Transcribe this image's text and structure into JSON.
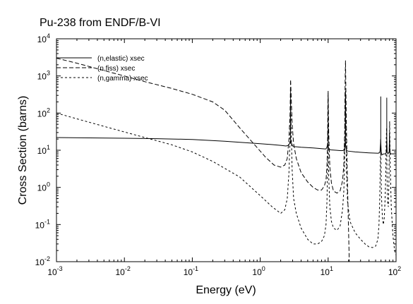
{
  "chart_data": {
    "type": "line",
    "title": "Pu-238 from ENDF/B-VI",
    "xlabel": "Energy (eV)",
    "ylabel": "Cross Section (barns)",
    "xscale": "log",
    "yscale": "log",
    "xlim": [
      0.001,
      100
    ],
    "ylim": [
      0.01,
      10000
    ],
    "x_ticks": [
      {
        "value": 0.001,
        "base": "10",
        "exp": "-3"
      },
      {
        "value": 0.01,
        "base": "10",
        "exp": "-2"
      },
      {
        "value": 0.1,
        "base": "10",
        "exp": "-1"
      },
      {
        "value": 1,
        "base": "10",
        "exp": "0"
      },
      {
        "value": 10,
        "base": "10",
        "exp": "1"
      },
      {
        "value": 100,
        "base": "10",
        "exp": "2"
      }
    ],
    "y_ticks": [
      {
        "value": 0.01,
        "base": "10",
        "exp": "-2"
      },
      {
        "value": 0.1,
        "base": "10",
        "exp": "-1"
      },
      {
        "value": 1,
        "base": "10",
        "exp": "0"
      },
      {
        "value": 10,
        "base": "10",
        "exp": "1"
      },
      {
        "value": 100,
        "base": "10",
        "exp": "2"
      },
      {
        "value": 1000,
        "base": "10",
        "exp": "3"
      },
      {
        "value": 10000,
        "base": "10",
        "exp": "4"
      }
    ],
    "legend_position": "top-left",
    "grid": false,
    "series": [
      {
        "name": "(n,elastic) xsec",
        "dash": "solid",
        "x": [
          0.001,
          0.003,
          0.01,
          0.03,
          0.1,
          0.3,
          1,
          1.5,
          2,
          2.4,
          2.6,
          2.7,
          2.8,
          2.9,
          3.0,
          3.2,
          4,
          6,
          8,
          9.2,
          9.5,
          9.7,
          9.9,
          10.1,
          10.4,
          11,
          13,
          15,
          16.5,
          17.2,
          17.6,
          17.9,
          18.2,
          18.6,
          19.5,
          25,
          40,
          55,
          58,
          59.5,
          60.5,
          62,
          66,
          70,
          72,
          73,
          74,
          76,
          79,
          80,
          81,
          83,
          88,
          95,
          100
        ],
        "y": [
          22,
          21.5,
          21,
          20.5,
          19.5,
          17.5,
          15,
          14.2,
          13.5,
          13,
          13.5,
          15,
          18,
          15,
          13,
          12.5,
          12,
          11.5,
          11,
          10.8,
          11.5,
          13,
          16,
          12,
          10.5,
          10.2,
          10,
          9.8,
          9.8,
          10.5,
          12,
          18,
          12,
          10,
          9.5,
          9,
          8.5,
          8.3,
          9,
          18,
          9,
          7.5,
          8,
          8,
          9,
          20,
          9,
          8,
          9,
          25,
          10,
          8,
          8,
          8,
          8
        ]
      },
      {
        "name": "(n,fiss) xsec",
        "dash": "long-dash",
        "x": [
          0.001,
          0.002,
          0.005,
          0.01,
          0.02,
          0.05,
          0.1,
          0.2,
          0.3,
          0.5,
          0.8,
          1.2,
          1.6,
          2.0,
          2.3,
          2.5,
          2.65,
          2.75,
          2.8,
          2.85,
          2.95,
          3.1,
          3.4,
          4,
          5,
          6,
          7,
          8,
          8.8,
          9.3,
          9.6,
          9.8,
          9.9,
          10.0,
          10.2,
          10.6,
          11.2,
          12,
          13.5,
          15,
          16.3,
          17.0,
          17.5,
          17.8,
          18.0,
          18.2,
          18.6,
          19.3,
          20.5
        ],
        "y": [
          3000,
          2200,
          1400,
          1000,
          700,
          460,
          320,
          200,
          120,
          40,
          15,
          6.5,
          4,
          3.5,
          4,
          6,
          20,
          100,
          800,
          300,
          50,
          15,
          6,
          2.5,
          1.4,
          1.0,
          0.85,
          0.85,
          1.1,
          1.6,
          3.5,
          15,
          150,
          400,
          30,
          3.5,
          1.3,
          0.8,
          0.7,
          0.8,
          1.5,
          4,
          30,
          800,
          2600,
          600,
          40,
          1.0,
          0.009
        ]
      },
      {
        "name": "(n,gamma) xsec",
        "dash": "short-dash",
        "x": [
          0.001,
          0.002,
          0.005,
          0.01,
          0.02,
          0.05,
          0.1,
          0.2,
          0.5,
          1,
          1.5,
          2,
          2.3,
          2.5,
          2.65,
          2.75,
          2.8,
          2.85,
          2.95,
          3.1,
          3.4,
          4,
          5,
          6,
          7,
          8,
          8.8,
          9.3,
          9.6,
          9.8,
          9.9,
          10.0,
          10.2,
          10.6,
          11.2,
          12,
          13.5,
          15,
          16.3,
          17.0,
          17.5,
          17.8,
          18.0,
          18.2,
          18.6,
          19.3,
          21,
          25,
          30,
          35,
          40,
          45,
          50,
          54,
          56,
          57.5,
          58.5,
          59.3,
          60.0,
          61,
          63,
          65,
          67,
          69,
          70.5,
          71.5,
          72.5,
          73.5,
          75,
          77,
          78.5,
          79.5,
          80.5,
          82,
          85,
          90,
          95,
          100
        ],
        "y": [
          100,
          70,
          44,
          31,
          22,
          14,
          9,
          5,
          1.9,
          0.6,
          0.3,
          0.2,
          0.25,
          0.5,
          2.5,
          25,
          180,
          40,
          3,
          0.5,
          0.2,
          0.08,
          0.04,
          0.03,
          0.03,
          0.035,
          0.05,
          0.1,
          0.4,
          3,
          30,
          40,
          2,
          0.3,
          0.12,
          0.08,
          0.07,
          0.09,
          0.25,
          0.8,
          5,
          100,
          300,
          60,
          3,
          0.4,
          0.12,
          0.06,
          0.04,
          0.03,
          0.025,
          0.024,
          0.026,
          0.04,
          0.1,
          0.5,
          3,
          20,
          4,
          0.6,
          0.15,
          0.1,
          0.15,
          0.5,
          2,
          15,
          40,
          3,
          0.4,
          0.3,
          1.5,
          10,
          60,
          4,
          0.3,
          0.05,
          0.02,
          0.015
        ]
      }
    ],
    "spikes": [
      {
        "series": "(n,elastic) xsec",
        "x": 2.8,
        "y_from": 15,
        "y_to": 500
      },
      {
        "series": "(n,elastic) xsec",
        "x": 10.0,
        "y_from": 16,
        "y_to": 300
      },
      {
        "series": "(n,elastic) xsec",
        "x": 18.0,
        "y_from": 18,
        "y_to": 400
      },
      {
        "series": "(n,elastic) xsec",
        "x": 59.5,
        "y_from": 18,
        "y_to": 280
      },
      {
        "series": "(n,elastic) xsec",
        "x": 73.0,
        "y_from": 20,
        "y_to": 260
      },
      {
        "series": "(n,elastic) xsec",
        "x": 80.0,
        "y_from": 25,
        "y_to": 30
      }
    ]
  }
}
